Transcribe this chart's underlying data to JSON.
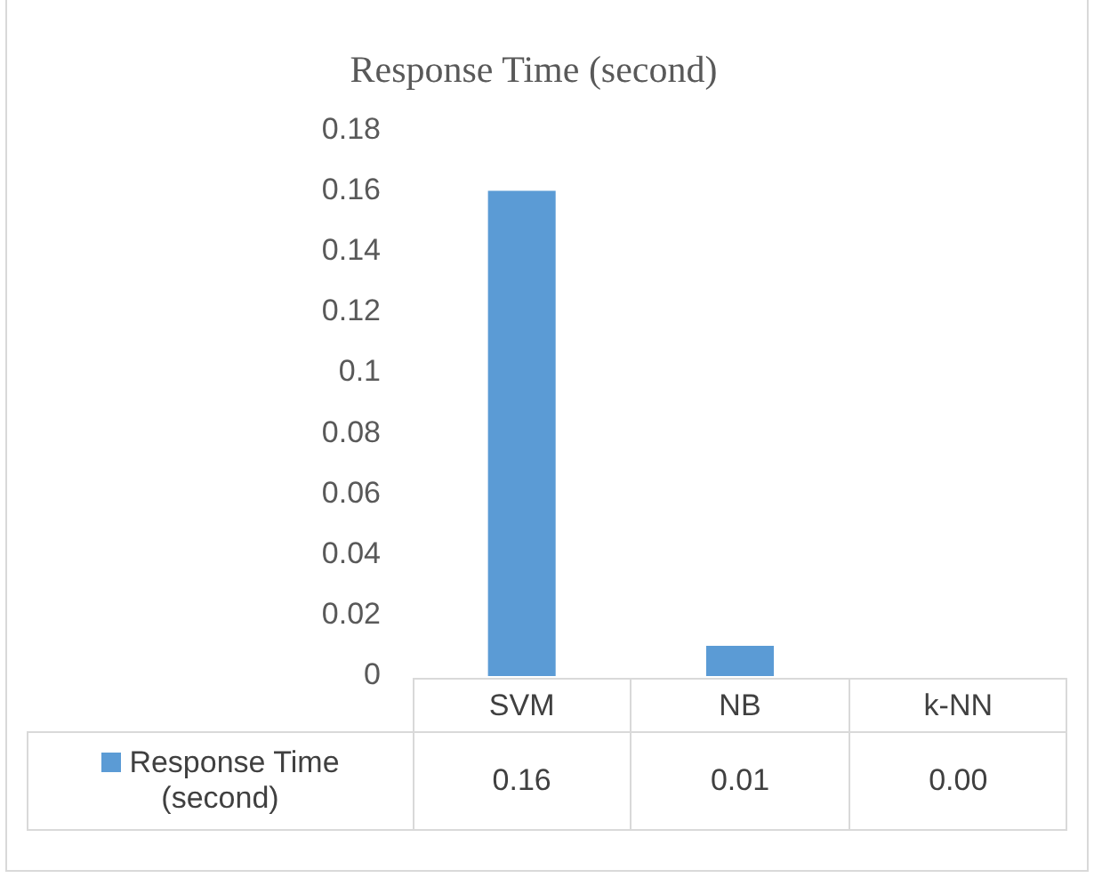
{
  "chart_data": {
    "type": "bar",
    "title": "Response Time (second)",
    "categories": [
      "SVM",
      "NB",
      "k-NN"
    ],
    "series": [
      {
        "name": "Response Time (second)",
        "color": "#5b9bd5",
        "values": [
          0.16,
          0.01,
          0.0
        ],
        "value_labels": [
          "0.16",
          "0.01",
          "0.00"
        ]
      }
    ],
    "ylim": [
      0,
      0.18
    ],
    "yticks": [
      0,
      0.02,
      0.04,
      0.06,
      0.08,
      0.1,
      0.12,
      0.14,
      0.16,
      0.18
    ],
    "grid": false,
    "legend": "bottom left"
  }
}
